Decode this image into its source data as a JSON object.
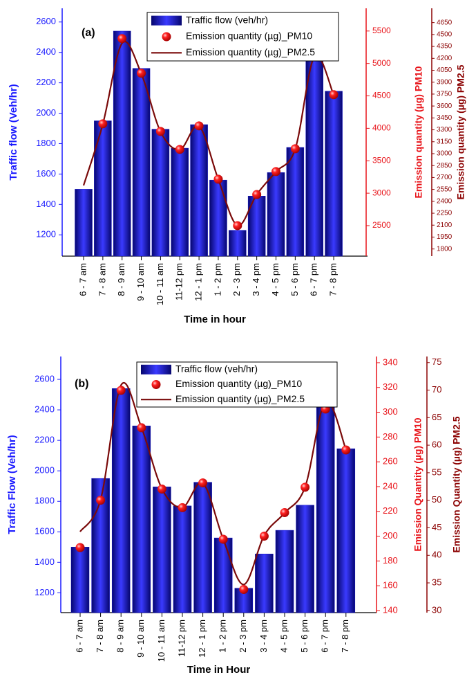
{
  "chart_data": [
    {
      "type": "combo",
      "title": "(a)",
      "xlabel": "Time in hour",
      "ylabel": "Traffic flow (Veh/hr)",
      "y2label": "Emission quantity (µg) PM10",
      "y3label": "Emission quantity (µg) PM2.5",
      "categories": [
        "6 - 7 am",
        "7 - 8 am",
        "8 - 9 am",
        "9 - 10 am",
        "10 - 11 am",
        "11-12 pm",
        "12 - 1 pm",
        "1 - 2 pm",
        "2 - 3 pm",
        "3 - 4 pm",
        "4 - 5 pm",
        "5 - 6 pm",
        "6 - 7 pm",
        "7 - 8 pm"
      ],
      "series": [
        {
          "name": "Traffic flow (veh/hr)",
          "type": "bar",
          "color": "#1010c8",
          "values": [
            1500,
            1950,
            2540,
            2295,
            1895,
            1770,
            1925,
            1560,
            1230,
            1455,
            1610,
            1775,
            2420,
            2145
          ]
        },
        {
          "name": "Emission quantity (µg)_PM10",
          "type": "scatter",
          "axis": "y2",
          "color": "#ff0000",
          "values": [
            null,
            4070,
            5383,
            4850,
            3952,
            3675,
            4038,
            3216,
            2500,
            2980,
            3333,
            3685,
            5117,
            4519
          ]
        },
        {
          "name": "Emission quantity (µg)_PM2.5",
          "type": "line",
          "axis": "y3",
          "color": "#7a0a0a",
          "values": [
            2600,
            3373,
            4390,
            4007,
            3277,
            3051,
            3347,
            2678,
            2095,
            2486,
            2773,
            3060,
            4225,
            3738
          ]
        }
      ],
      "ylim": [
        1060,
        2690
      ],
      "yticks": [
        1200,
        1400,
        1600,
        1800,
        2000,
        2200,
        2400,
        2600
      ],
      "y2lim": [
        2030,
        5850
      ],
      "y2ticks": [
        2500,
        3000,
        3500,
        4000,
        4500,
        5000,
        5500
      ],
      "y3lim": [
        1710,
        4830
      ],
      "y3ticks": [
        1800,
        1950,
        2100,
        2250,
        2400,
        2550,
        2700,
        2850,
        3000,
        3150,
        3300,
        3450,
        3600,
        3750,
        3900,
        4050,
        4200,
        4350,
        4500,
        4650
      ]
    },
    {
      "type": "combo",
      "title": "(b)",
      "xlabel": "Time in Hour",
      "ylabel": "Traffic Flow (Veh/hr)",
      "y2label": "Emission Quantity (µg) PM10",
      "y3label": "Emission Quantity (µg) PM2.5",
      "categories": [
        "6 - 7 am",
        "7 - 8 am",
        "8 - 9 am",
        "9 - 10 am",
        "10 - 11 am",
        "11-12 pm",
        "12 - 1 pm",
        "1 - 2 pm",
        "2 - 3 pm",
        "3 - 4 pm",
        "4 - 5 pm",
        "5 - 6 pm",
        "6 - 7 pm",
        "7 - 8 pm"
      ],
      "series": [
        {
          "name": "Traffic flow (veh/hr)",
          "type": "bar",
          "color": "#1010c8",
          "values": [
            1500,
            1950,
            2540,
            2295,
            1895,
            1770,
            1925,
            1560,
            1230,
            1455,
            1610,
            1775,
            2420,
            2145
          ]
        },
        {
          "name": "Emission quantity (µg)_PM10",
          "type": "scatter",
          "axis": "y2",
          "color": "#ff0000",
          "values": [
            190.8,
            229,
            317.7,
            287.5,
            238,
            223,
            243,
            197.5,
            157,
            200,
            219,
            239.5,
            302.6,
            269.6
          ]
        },
        {
          "name": "Emission quantity (µg)_PM2.5",
          "type": "line",
          "axis": "y3",
          "color": "#7a0a0a",
          "values": [
            44.3,
            50.1,
            70.9,
            63.2,
            52.1,
            48.7,
            53.1,
            42.9,
            34.7,
            43.6,
            47.7,
            52.4,
            68,
            59.2
          ]
        }
      ],
      "ylim": [
        1070,
        2750
      ],
      "yticks": [
        1200,
        1400,
        1600,
        1800,
        2000,
        2200,
        2400,
        2600
      ],
      "y2lim": [
        138.3,
        345
      ],
      "y2ticks": [
        140,
        160,
        180,
        200,
        220,
        240,
        260,
        280,
        300,
        320,
        340
      ],
      "y3lim": [
        29.6,
        76.1
      ],
      "y3ticks": [
        30,
        35,
        40,
        45,
        50,
        55,
        60,
        65,
        70,
        75
      ]
    }
  ]
}
